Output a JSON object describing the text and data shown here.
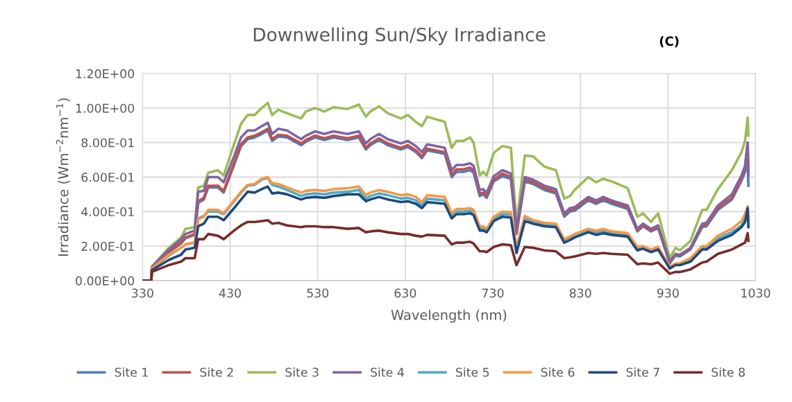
{
  "chart_data": {
    "type": "line",
    "title": "Downwelling Sun/Sky Irradiance",
    "annotations": [
      "(C)"
    ],
    "xlabel": "Wavelength (nm)",
    "ylabel": "Irradiance (Wm$^{−2}$nm$^{−1}$)",
    "x": [
      330,
      340,
      340.6,
      360,
      374,
      379,
      389.5,
      393.5,
      400,
      405,
      416,
      422.6,
      434.5,
      442.5,
      450,
      458,
      466,
      473,
      478,
      485,
      495,
      511,
      516.5,
      527,
      537.7,
      548,
      564,
      577,
      585,
      590,
      600,
      610,
      625,
      633,
      642,
      649,
      655,
      675,
      683,
      688.5,
      696.5,
      704,
      708,
      715,
      719,
      723,
      731,
      741,
      750.6,
      757,
      766.5,
      776,
      789,
      802,
      811.5,
      818,
      823.4,
      839,
      848,
      856,
      865.7,
      884,
      895,
      901.5,
      910.7,
      918.7,
      932,
      938.5,
      943.6,
      955.7,
      969,
      974,
      987,
      1003,
      1014,
      1018,
      1021,
      1021.8
    ],
    "series": [
      {
        "name": "Site 1",
        "color": "#4a7ebb",
        "values": [
          0,
          0,
          0.07,
          0.165,
          0.215,
          0.245,
          0.265,
          0.45,
          0.47,
          0.54,
          0.54,
          0.51,
          0.67,
          0.78,
          0.82,
          0.83,
          0.85,
          0.87,
          0.81,
          0.835,
          0.83,
          0.785,
          0.805,
          0.83,
          0.815,
          0.83,
          0.815,
          0.83,
          0.76,
          0.785,
          0.815,
          0.785,
          0.76,
          0.775,
          0.745,
          0.71,
          0.755,
          0.735,
          0.6,
          0.63,
          0.63,
          0.64,
          0.625,
          0.49,
          0.5,
          0.48,
          0.575,
          0.605,
          0.59,
          0.27,
          0.575,
          0.56,
          0.525,
          0.505,
          0.37,
          0.4,
          0.405,
          0.465,
          0.445,
          0.465,
          0.445,
          0.415,
          0.285,
          0.315,
          0.285,
          0.305,
          0.1,
          0.145,
          0.14,
          0.18,
          0.31,
          0.315,
          0.41,
          0.47,
          0.58,
          0.63,
          0.68,
          0.55
        ]
      },
      {
        "name": "Site 2",
        "color": "#c0504d",
        "values": [
          0,
          0,
          0.07,
          0.17,
          0.22,
          0.25,
          0.27,
          0.46,
          0.48,
          0.55,
          0.55,
          0.52,
          0.68,
          0.79,
          0.83,
          0.84,
          0.86,
          0.88,
          0.82,
          0.845,
          0.84,
          0.795,
          0.815,
          0.84,
          0.825,
          0.84,
          0.825,
          0.84,
          0.77,
          0.795,
          0.825,
          0.795,
          0.77,
          0.785,
          0.755,
          0.72,
          0.765,
          0.745,
          0.615,
          0.645,
          0.645,
          0.655,
          0.64,
          0.505,
          0.51,
          0.49,
          0.585,
          0.62,
          0.6,
          0.28,
          0.585,
          0.57,
          0.535,
          0.515,
          0.38,
          0.41,
          0.415,
          0.475,
          0.455,
          0.475,
          0.455,
          0.425,
          0.29,
          0.32,
          0.29,
          0.31,
          0.105,
          0.15,
          0.145,
          0.185,
          0.32,
          0.325,
          0.42,
          0.48,
          0.59,
          0.66,
          0.8,
          0.62
        ]
      },
      {
        "name": "Site 3",
        "color": "#9bbb59",
        "values": [
          0,
          0,
          0.08,
          0.19,
          0.25,
          0.3,
          0.31,
          0.54,
          0.55,
          0.625,
          0.64,
          0.61,
          0.79,
          0.91,
          0.96,
          0.96,
          1.0,
          1.03,
          0.96,
          0.99,
          0.97,
          0.94,
          0.98,
          1.0,
          0.98,
          1.005,
          0.995,
          1.02,
          0.95,
          0.98,
          1.01,
          0.97,
          0.94,
          0.96,
          0.92,
          0.895,
          0.95,
          0.92,
          0.77,
          0.81,
          0.81,
          0.83,
          0.8,
          0.61,
          0.63,
          0.61,
          0.74,
          0.78,
          0.77,
          0.33,
          0.725,
          0.72,
          0.66,
          0.64,
          0.475,
          0.49,
          0.525,
          0.6,
          0.57,
          0.59,
          0.575,
          0.535,
          0.37,
          0.39,
          0.34,
          0.39,
          0.13,
          0.19,
          0.175,
          0.23,
          0.41,
          0.41,
          0.53,
          0.64,
          0.745,
          0.81,
          0.945,
          0.84
        ]
      },
      {
        "name": "Site 4",
        "color": "#8064a2",
        "values": [
          0,
          0,
          0.08,
          0.18,
          0.24,
          0.27,
          0.29,
          0.515,
          0.52,
          0.6,
          0.6,
          0.57,
          0.72,
          0.83,
          0.87,
          0.87,
          0.895,
          0.915,
          0.85,
          0.88,
          0.87,
          0.82,
          0.84,
          0.865,
          0.85,
          0.865,
          0.85,
          0.865,
          0.795,
          0.82,
          0.85,
          0.82,
          0.795,
          0.81,
          0.78,
          0.745,
          0.79,
          0.77,
          0.64,
          0.67,
          0.67,
          0.68,
          0.665,
          0.525,
          0.53,
          0.51,
          0.605,
          0.64,
          0.62,
          0.3,
          0.6,
          0.585,
          0.55,
          0.53,
          0.39,
          0.42,
          0.425,
          0.485,
          0.465,
          0.485,
          0.465,
          0.435,
          0.3,
          0.33,
          0.3,
          0.32,
          0.11,
          0.155,
          0.15,
          0.19,
          0.33,
          0.335,
          0.435,
          0.5,
          0.61,
          0.665,
          0.8,
          0.61
        ]
      },
      {
        "name": "Site 5",
        "color": "#4bacc6",
        "values": [
          0,
          0,
          0.07,
          0.145,
          0.19,
          0.21,
          0.22,
          0.36,
          0.375,
          0.4,
          0.4,
          0.385,
          0.46,
          0.51,
          0.55,
          0.555,
          0.585,
          0.595,
          0.555,
          0.545,
          0.525,
          0.49,
          0.5,
          0.505,
          0.5,
          0.51,
          0.515,
          0.525,
          0.475,
          0.49,
          0.505,
          0.495,
          0.475,
          0.48,
          0.465,
          0.435,
          0.475,
          0.465,
          0.375,
          0.4,
          0.4,
          0.405,
          0.395,
          0.305,
          0.305,
          0.29,
          0.36,
          0.385,
          0.38,
          0.18,
          0.365,
          0.34,
          0.325,
          0.32,
          0.235,
          0.25,
          0.265,
          0.29,
          0.28,
          0.29,
          0.275,
          0.265,
          0.19,
          0.195,
          0.175,
          0.19,
          0.08,
          0.095,
          0.095,
          0.125,
          0.19,
          0.19,
          0.245,
          0.28,
          0.32,
          0.36,
          0.41,
          0.33
        ]
      },
      {
        "name": "Site 6",
        "color": "#f79646",
        "values": [
          0,
          0,
          0.07,
          0.15,
          0.19,
          0.21,
          0.22,
          0.355,
          0.37,
          0.41,
          0.41,
          0.39,
          0.465,
          0.515,
          0.555,
          0.56,
          0.59,
          0.6,
          0.565,
          0.56,
          0.54,
          0.51,
          0.52,
          0.525,
          0.52,
          0.53,
          0.535,
          0.545,
          0.495,
          0.51,
          0.525,
          0.515,
          0.495,
          0.5,
          0.485,
          0.455,
          0.495,
          0.485,
          0.39,
          0.415,
          0.415,
          0.42,
          0.41,
          0.315,
          0.315,
          0.3,
          0.37,
          0.4,
          0.395,
          0.195,
          0.375,
          0.35,
          0.335,
          0.33,
          0.24,
          0.255,
          0.27,
          0.3,
          0.29,
          0.3,
          0.285,
          0.275,
          0.195,
          0.2,
          0.18,
          0.195,
          0.08,
          0.1,
          0.1,
          0.13,
          0.2,
          0.2,
          0.26,
          0.3,
          0.345,
          0.385,
          0.43,
          0.37
        ]
      },
      {
        "name": "Site 7",
        "color": "#1f497d",
        "values": [
          0,
          0,
          0.06,
          0.12,
          0.15,
          0.18,
          0.19,
          0.315,
          0.33,
          0.37,
          0.37,
          0.35,
          0.42,
          0.47,
          0.515,
          0.51,
          0.53,
          0.545,
          0.505,
          0.51,
          0.5,
          0.47,
          0.48,
          0.485,
          0.48,
          0.49,
          0.5,
          0.5,
          0.46,
          0.47,
          0.485,
          0.47,
          0.455,
          0.46,
          0.445,
          0.42,
          0.455,
          0.445,
          0.36,
          0.385,
          0.385,
          0.39,
          0.38,
          0.29,
          0.29,
          0.28,
          0.345,
          0.37,
          0.365,
          0.16,
          0.345,
          0.33,
          0.315,
          0.31,
          0.22,
          0.235,
          0.25,
          0.28,
          0.265,
          0.275,
          0.265,
          0.255,
          0.175,
          0.185,
          0.165,
          0.18,
          0.07,
          0.09,
          0.09,
          0.11,
          0.18,
          0.18,
          0.23,
          0.265,
          0.31,
          0.34,
          0.42,
          0.31
        ]
      },
      {
        "name": "Site 8",
        "color": "#772c2a",
        "values": [
          0,
          0,
          0.05,
          0.09,
          0.11,
          0.13,
          0.13,
          0.24,
          0.24,
          0.27,
          0.26,
          0.24,
          0.29,
          0.32,
          0.34,
          0.34,
          0.345,
          0.35,
          0.33,
          0.335,
          0.32,
          0.31,
          0.315,
          0.315,
          0.31,
          0.31,
          0.3,
          0.305,
          0.28,
          0.285,
          0.29,
          0.28,
          0.27,
          0.27,
          0.26,
          0.255,
          0.265,
          0.26,
          0.21,
          0.22,
          0.22,
          0.225,
          0.215,
          0.17,
          0.17,
          0.165,
          0.195,
          0.21,
          0.205,
          0.09,
          0.195,
          0.19,
          0.175,
          0.17,
          0.13,
          0.135,
          0.14,
          0.16,
          0.155,
          0.16,
          0.155,
          0.15,
          0.095,
          0.1,
          0.095,
          0.105,
          0.04,
          0.05,
          0.05,
          0.065,
          0.105,
          0.11,
          0.155,
          0.18,
          0.21,
          0.22,
          0.275,
          0.23
        ]
      }
    ],
    "xlim": [
      330,
      1030
    ],
    "xticks": [
      330,
      430,
      530,
      630,
      730,
      830,
      930,
      1030
    ],
    "ylim": [
      0,
      1.2
    ],
    "yticks": [
      {
        "value": 0,
        "label": "0.00E+00"
      },
      {
        "value": 0.2,
        "label": "2.00E-01"
      },
      {
        "value": 0.4,
        "label": "4.00E-01"
      },
      {
        "value": 0.6,
        "label": "6.00E-01"
      },
      {
        "value": 0.8,
        "label": "8.00E-01"
      },
      {
        "value": 1.0,
        "label": "1.00E+00"
      },
      {
        "value": 1.2,
        "label": "1.20E+00"
      }
    ],
    "grid": true,
    "legend": "bottom",
    "marker": "none",
    "line_style": "solid"
  }
}
